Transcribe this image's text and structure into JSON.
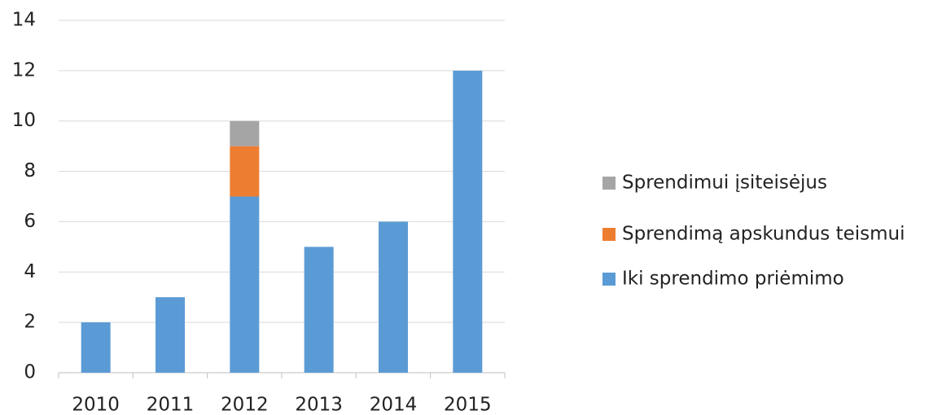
{
  "chart_data": {
    "type": "bar",
    "stacked": true,
    "categories": [
      "2010",
      "2011",
      "2012",
      "2013",
      "2014",
      "2015"
    ],
    "series": [
      {
        "name": "Iki sprendimo priėmimo",
        "color": "#5b9bd5",
        "values": [
          2,
          3,
          7,
          5,
          6,
          12
        ]
      },
      {
        "name": "Sprendimą apskundus teismui",
        "color": "#ed7d31",
        "values": [
          0,
          0,
          2,
          0,
          0,
          0
        ]
      },
      {
        "name": "Sprendimui įsiteisėjus",
        "color": "#a5a5a5",
        "values": [
          0,
          0,
          1,
          0,
          0,
          0
        ]
      }
    ],
    "ylim": [
      0,
      14
    ],
    "yticks": [
      0,
      2,
      4,
      6,
      8,
      10,
      12,
      14
    ],
    "grid": true,
    "legend": "right"
  }
}
